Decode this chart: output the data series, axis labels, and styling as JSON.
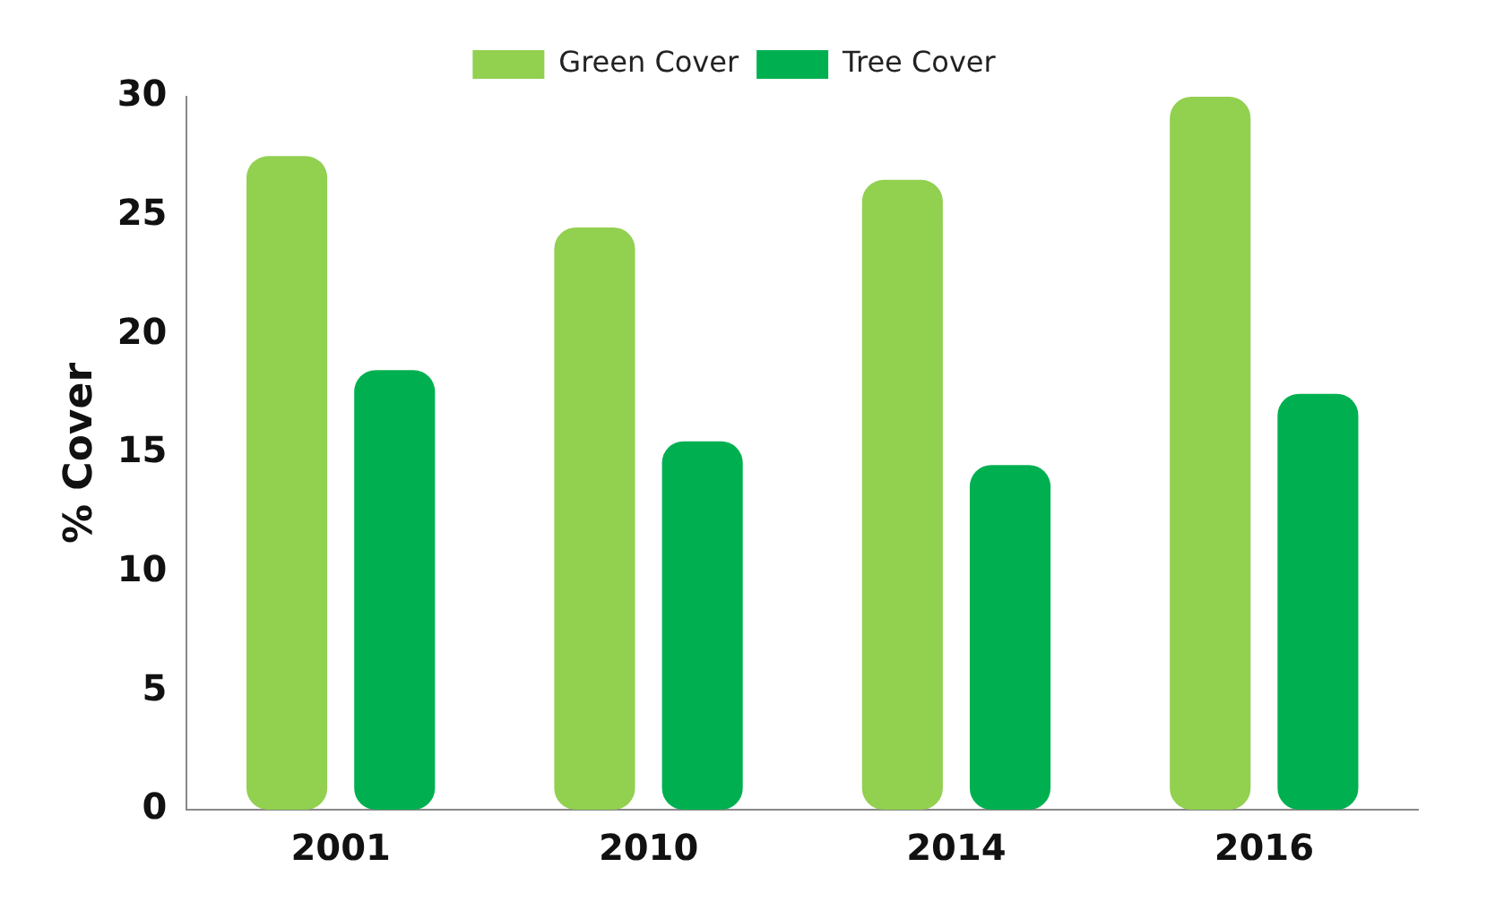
{
  "chart_data": {
    "type": "bar",
    "ylabel": "% Cover",
    "categories": [
      "2001",
      "2010",
      "2014",
      "2016"
    ],
    "series": [
      {
        "name": "Green Cover",
        "color": "#92d050",
        "values": [
          27.5,
          24.5,
          26.5,
          30
        ]
      },
      {
        "name": "Tree Cover",
        "color": "#00b050",
        "values": [
          18.5,
          15.5,
          14.5,
          17.5
        ]
      }
    ],
    "ylim": [
      0,
      30
    ],
    "yticks": [
      0,
      5,
      10,
      15,
      20,
      25,
      30
    ],
    "grid": false,
    "legend": "top"
  }
}
